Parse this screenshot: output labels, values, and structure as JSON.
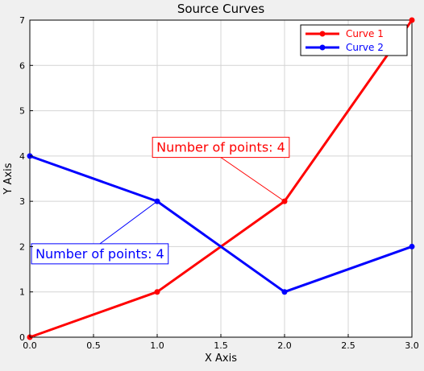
{
  "chart_data": {
    "type": "line",
    "title": "Source Curves",
    "xlabel": "X Axis",
    "ylabel": "Y Axis",
    "xlim": [
      0,
      3
    ],
    "ylim": [
      0,
      7
    ],
    "xticks": [
      0,
      0.5,
      1,
      1.5,
      2,
      2.5,
      3
    ],
    "xtick_labels": [
      "0.0",
      "0.5",
      "1.0",
      "1.5",
      "2.0",
      "2.5",
      "3.0"
    ],
    "yticks": [
      0,
      1,
      2,
      3,
      4,
      5,
      6,
      7
    ],
    "ytick_labels": [
      "0",
      "1",
      "2",
      "3",
      "4",
      "5",
      "6",
      "7"
    ],
    "grid": true,
    "legend_position": "top-right",
    "series": [
      {
        "name": "Curve 1",
        "color": "#ff0000",
        "x": [
          0,
          1,
          2,
          3
        ],
        "y": [
          0,
          1,
          3,
          7
        ]
      },
      {
        "name": "Curve 2",
        "color": "#0000ff",
        "x": [
          0,
          1,
          2,
          3
        ],
        "y": [
          4,
          3,
          1,
          2
        ]
      }
    ],
    "annotations": [
      {
        "text": "Number of points: 4",
        "color": "#ff0000",
        "target": {
          "x": 2,
          "y": 3
        },
        "box_anchor": {
          "x": 1.5,
          "y": 4.2
        }
      },
      {
        "text": "Number of points: 4",
        "color": "#0000ff",
        "target": {
          "x": 1,
          "y": 3
        },
        "box_anchor": {
          "x": 0.55,
          "y": 1.85
        }
      }
    ]
  }
}
